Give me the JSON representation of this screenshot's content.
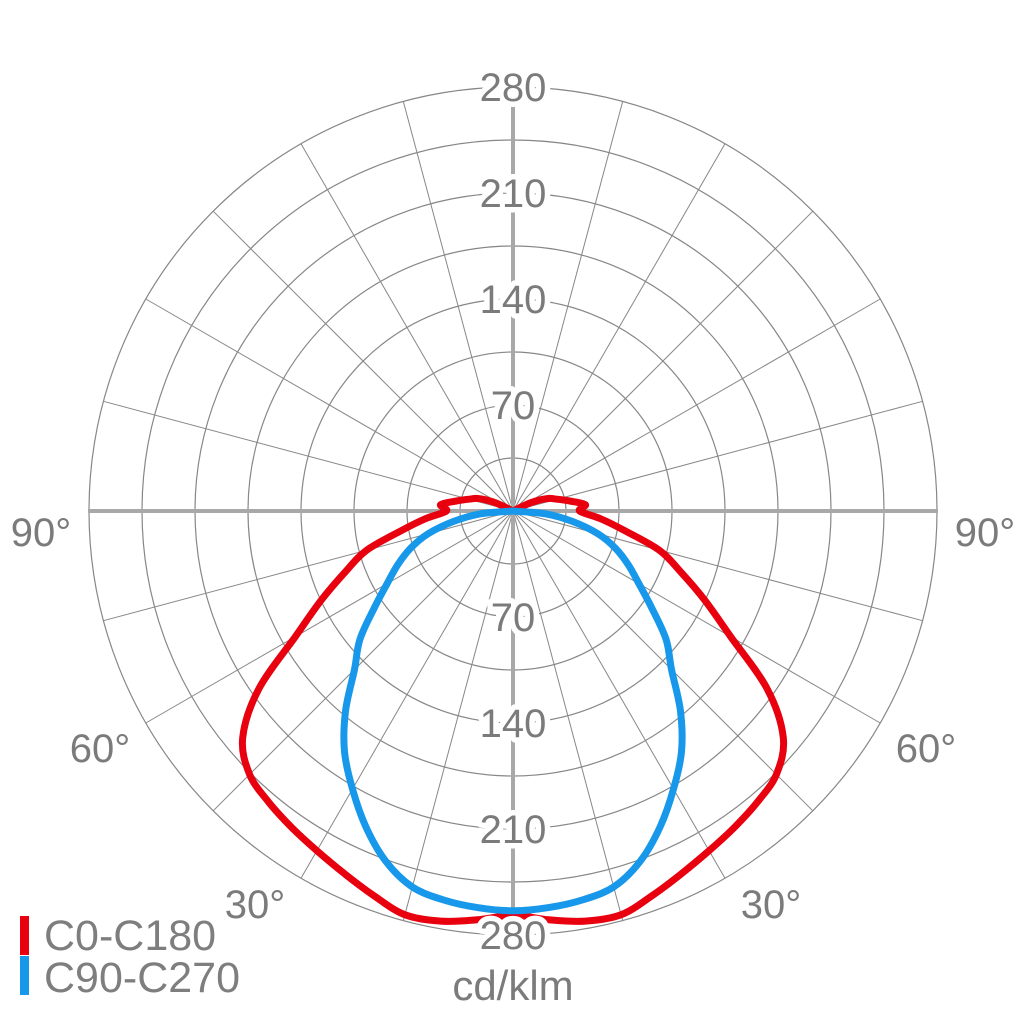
{
  "chart_data": {
    "type": "line",
    "coordinate_system": "polar",
    "description": "Luminous intensity distribution (photometric polar diagram), gamma measured from straight down",
    "units_label": "cd/klm",
    "radial_axis": {
      "tick_values": [
        70,
        140,
        210,
        280
      ],
      "ring_step": 35,
      "max": 280
    },
    "angle_ticks": [
      {
        "label": "90°",
        "angle_deg": 90
      },
      {
        "label": "60°",
        "angle_deg": 60
      },
      {
        "label": "30°",
        "angle_deg": 30
      }
    ],
    "spoke_step_deg": 15,
    "gamma_zero_direction": "down",
    "series": [
      {
        "name": "C0-C180",
        "color": "#e8000f",
        "mirror_symmetric": true,
        "gamma_deg": [
          0,
          5,
          10,
          15,
          20,
          25,
          30,
          35,
          40,
          45,
          50,
          55,
          60,
          65,
          70,
          75,
          80,
          85,
          90,
          95,
          100,
          105,
          110,
          115,
          120
        ],
        "cd_per_klm": [
          267,
          271,
          275,
          276,
          270,
          264,
          259,
          255,
          251,
          246,
          233,
          205,
          166,
          140,
          118,
          100,
          75,
          58,
          44,
          48,
          38,
          30,
          24,
          13,
          0
        ]
      },
      {
        "name": "C90-C270",
        "color": "#1798ea",
        "mirror_symmetric": true,
        "gamma_deg": [
          0,
          5,
          10,
          15,
          20,
          25,
          30,
          35,
          40,
          45,
          50,
          55,
          60,
          65,
          70,
          75,
          80,
          85,
          90
        ],
        "cd_per_klm": [
          264,
          263,
          261,
          257,
          246,
          230,
          212,
          194,
          172,
          148,
          132,
          112,
          96,
          84,
          72,
          58,
          40,
          22,
          0
        ]
      }
    ]
  },
  "legend": {
    "items": [
      {
        "label": "C0-C180",
        "color": "#e8000f"
      },
      {
        "label": "C90-C270",
        "color": "#1798ea"
      }
    ]
  },
  "colors": {
    "background": "#ffffff",
    "grid": "#878787",
    "axis": "#a8a8a8",
    "label": "#7b7b7b",
    "halo": "#ffffff"
  }
}
